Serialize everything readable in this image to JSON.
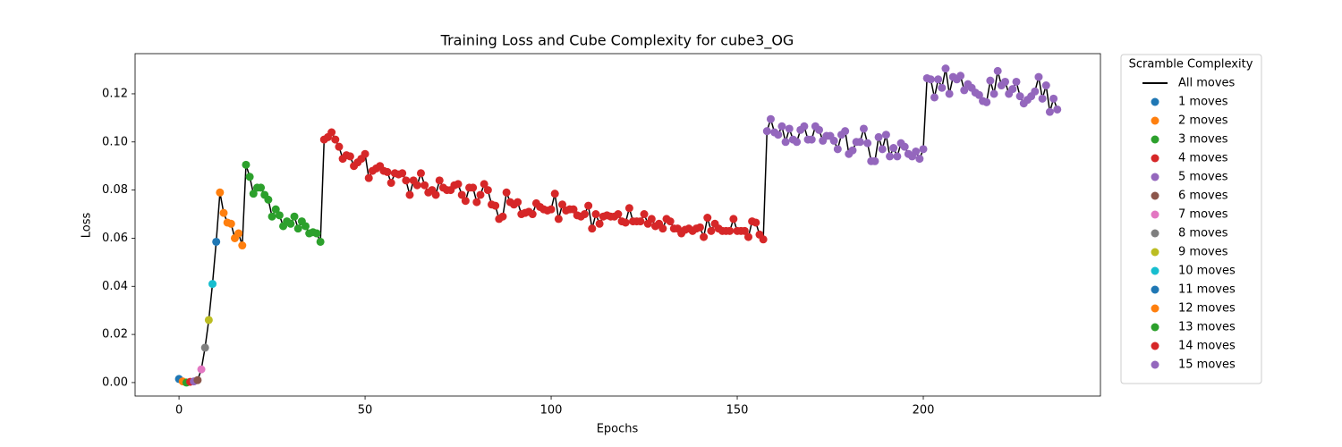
{
  "chart_data": {
    "type": "scatter",
    "title": "Training Loss and Cube Complexity for cube3_OG",
    "x_label": "Epochs",
    "y_label": "Loss",
    "xlim": [
      -11.8,
      247.6
    ],
    "ylim": [
      -0.0056,
      0.1367
    ],
    "xticks": [
      0,
      50,
      100,
      150,
      200
    ],
    "yticks": [
      {
        "value": 0,
        "label": "0.00"
      },
      {
        "value": 0.02,
        "label": "0.02"
      },
      {
        "value": 0.04,
        "label": "0.04"
      },
      {
        "value": 0.06,
        "label": "0.06"
      },
      {
        "value": 0.08,
        "label": "0.08"
      },
      {
        "value": 0.1,
        "label": "0.10"
      },
      {
        "value": 0.12,
        "label": "0.12"
      }
    ],
    "legend": "outside right",
    "legend_title": "Scramble Complexity",
    "line": {
      "name": "All moves",
      "color": "#000000"
    },
    "series": [
      {
        "name": "1 moves",
        "color": "#1f77b4",
        "x": [
          0
        ],
        "values": [
          0.0015
        ]
      },
      {
        "name": "2 moves",
        "color": "#ff7f0e",
        "x": [
          1
        ],
        "values": [
          0.0005
        ]
      },
      {
        "name": "3 moves",
        "color": "#2ca02c",
        "x": [
          2
        ],
        "values": [
          0
        ]
      },
      {
        "name": "4 moves",
        "color": "#d62728",
        "x": [
          3
        ],
        "values": [
          0.0003
        ]
      },
      {
        "name": "5 moves",
        "color": "#9467bd",
        "x": [
          4
        ],
        "values": [
          0.0005
        ]
      },
      {
        "name": "6 moves",
        "color": "#8c564b",
        "x": [
          5
        ],
        "values": [
          0.001
        ]
      },
      {
        "name": "7 moves",
        "color": "#e377c2",
        "x": [
          6
        ],
        "values": [
          0.0055
        ]
      },
      {
        "name": "8 moves",
        "color": "#7f7f7f",
        "x": [
          7
        ],
        "values": [
          0.0145
        ]
      },
      {
        "name": "9 moves",
        "color": "#bcbd22",
        "x": [
          8
        ],
        "values": [
          0.026
        ]
      },
      {
        "name": "10 moves",
        "color": "#17becf",
        "x": [
          9
        ],
        "values": [
          0.041
        ]
      },
      {
        "name": "11 moves",
        "color": "#1f77b4",
        "x": [
          10
        ],
        "values": [
          0.0585
        ]
      },
      {
        "name": "12 moves",
        "color": "#ff7f0e",
        "x": [
          11,
          12,
          13,
          14,
          15,
          16,
          17
        ],
        "values": [
          0.079,
          0.0705,
          0.0665,
          0.066,
          0.06,
          0.062,
          0.057
        ]
      },
      {
        "name": "13 moves",
        "color": "#2ca02c",
        "x": [
          18,
          19,
          20,
          21,
          22,
          23,
          24,
          25,
          26,
          27,
          28,
          29,
          30,
          31,
          32,
          33,
          34,
          35,
          36,
          37,
          38
        ],
        "values": [
          0.0905,
          0.0855,
          0.0785,
          0.081,
          0.081,
          0.078,
          0.076,
          0.069,
          0.072,
          0.0695,
          0.065,
          0.067,
          0.066,
          0.069,
          0.064,
          0.067,
          0.065,
          0.062,
          0.0625,
          0.062,
          0.0585
        ]
      },
      {
        "name": "14 moves",
        "color": "#d62728",
        "x": [
          39,
          40,
          41,
          42,
          43,
          44,
          45,
          46,
          47,
          48,
          49,
          50,
          51,
          52,
          53,
          54,
          55,
          56,
          57,
          58,
          59,
          60,
          61,
          62,
          63,
          64,
          65,
          66,
          67,
          68,
          69,
          70,
          71,
          72,
          73,
          74,
          75,
          76,
          77,
          78,
          79,
          80,
          81,
          82,
          83,
          84,
          85,
          86,
          87,
          88,
          89,
          90,
          91,
          92,
          93,
          94,
          95,
          96,
          97,
          98,
          99,
          100,
          101,
          102,
          103,
          104,
          105,
          106,
          107,
          108,
          109,
          110,
          111,
          112,
          113,
          114,
          115,
          116,
          117,
          118,
          119,
          120,
          121,
          122,
          123,
          124,
          125,
          126,
          127,
          128,
          129,
          130,
          131,
          132,
          133,
          134,
          135,
          136,
          137,
          138,
          139,
          140,
          141,
          142,
          143,
          144,
          145,
          146,
          147,
          148,
          149,
          150,
          151,
          152,
          153,
          154,
          155,
          156,
          157
        ],
        "values": [
          0.101,
          0.102,
          0.104,
          0.101,
          0.098,
          0.093,
          0.0945,
          0.094,
          0.09,
          0.0915,
          0.093,
          0.095,
          0.085,
          0.088,
          0.089,
          0.09,
          0.088,
          0.0875,
          0.083,
          0.087,
          0.0865,
          0.087,
          0.084,
          0.078,
          0.084,
          0.082,
          0.087,
          0.082,
          0.079,
          0.08,
          0.078,
          0.084,
          0.081,
          0.08,
          0.08,
          0.082,
          0.0825,
          0.078,
          0.0755,
          0.081,
          0.081,
          0.075,
          0.078,
          0.0825,
          0.08,
          0.074,
          0.0735,
          0.068,
          0.069,
          0.079,
          0.075,
          0.074,
          0.075,
          0.07,
          0.0705,
          0.071,
          0.07,
          0.0745,
          0.073,
          0.072,
          0.0715,
          0.072,
          0.0785,
          0.068,
          0.074,
          0.0715,
          0.072,
          0.072,
          0.0695,
          0.069,
          0.07,
          0.0735,
          0.064,
          0.07,
          0.066,
          0.069,
          0.0695,
          0.069,
          0.069,
          0.07,
          0.067,
          0.0665,
          0.0725,
          0.067,
          0.067,
          0.067,
          0.07,
          0.066,
          0.068,
          0.065,
          0.066,
          0.064,
          0.068,
          0.067,
          0.064,
          0.064,
          0.062,
          0.0635,
          0.064,
          0.063,
          0.064,
          0.0645,
          0.0605,
          0.0685,
          0.063,
          0.066,
          0.064,
          0.063,
          0.063,
          0.063,
          0.068,
          0.063,
          0.063,
          0.063,
          0.0605,
          0.067,
          0.0665,
          0.0615,
          0.0595
        ]
      },
      {
        "name": "15 moves",
        "color": "#9467bd",
        "x": [
          158,
          159,
          160,
          161,
          162,
          163,
          164,
          165,
          166,
          167,
          168,
          169,
          170,
          171,
          172,
          173,
          174,
          175,
          176,
          177,
          178,
          179,
          180,
          181,
          182,
          183,
          184,
          185,
          186,
          187,
          188,
          189,
          190,
          191,
          192,
          193,
          194,
          195,
          196,
          197,
          198,
          199,
          200,
          201,
          202,
          203,
          204,
          205,
          206,
          207,
          208,
          209,
          210,
          211,
          212,
          213,
          214,
          215,
          216,
          217,
          218,
          219,
          220,
          221,
          222,
          223,
          224,
          225,
          226,
          227,
          228,
          229,
          230,
          231,
          232,
          233,
          234,
          235,
          236
        ],
        "values": [
          0.1045,
          0.1095,
          0.104,
          0.103,
          0.1065,
          0.1,
          0.1055,
          0.101,
          0.1,
          0.105,
          0.1065,
          0.101,
          0.101,
          0.1065,
          0.105,
          0.1005,
          0.1025,
          0.1025,
          0.1005,
          0.097,
          0.103,
          0.1045,
          0.095,
          0.0965,
          0.1,
          0.1,
          0.1055,
          0.0995,
          0.092,
          0.092,
          0.102,
          0.097,
          0.103,
          0.094,
          0.0975,
          0.094,
          0.0995,
          0.098,
          0.095,
          0.094,
          0.096,
          0.093,
          0.097,
          0.1265,
          0.126,
          0.1185,
          0.126,
          0.1225,
          0.1305,
          0.12,
          0.127,
          0.126,
          0.1275,
          0.1215,
          0.124,
          0.1225,
          0.1205,
          0.1195,
          0.117,
          0.1165,
          0.1255,
          0.12,
          0.1295,
          0.1235,
          0.125,
          0.12,
          0.122,
          0.125,
          0.119,
          0.116,
          0.1175,
          0.119,
          0.121,
          0.127,
          0.118,
          0.1235,
          0.1125,
          0.118,
          0.1135
        ]
      }
    ]
  }
}
